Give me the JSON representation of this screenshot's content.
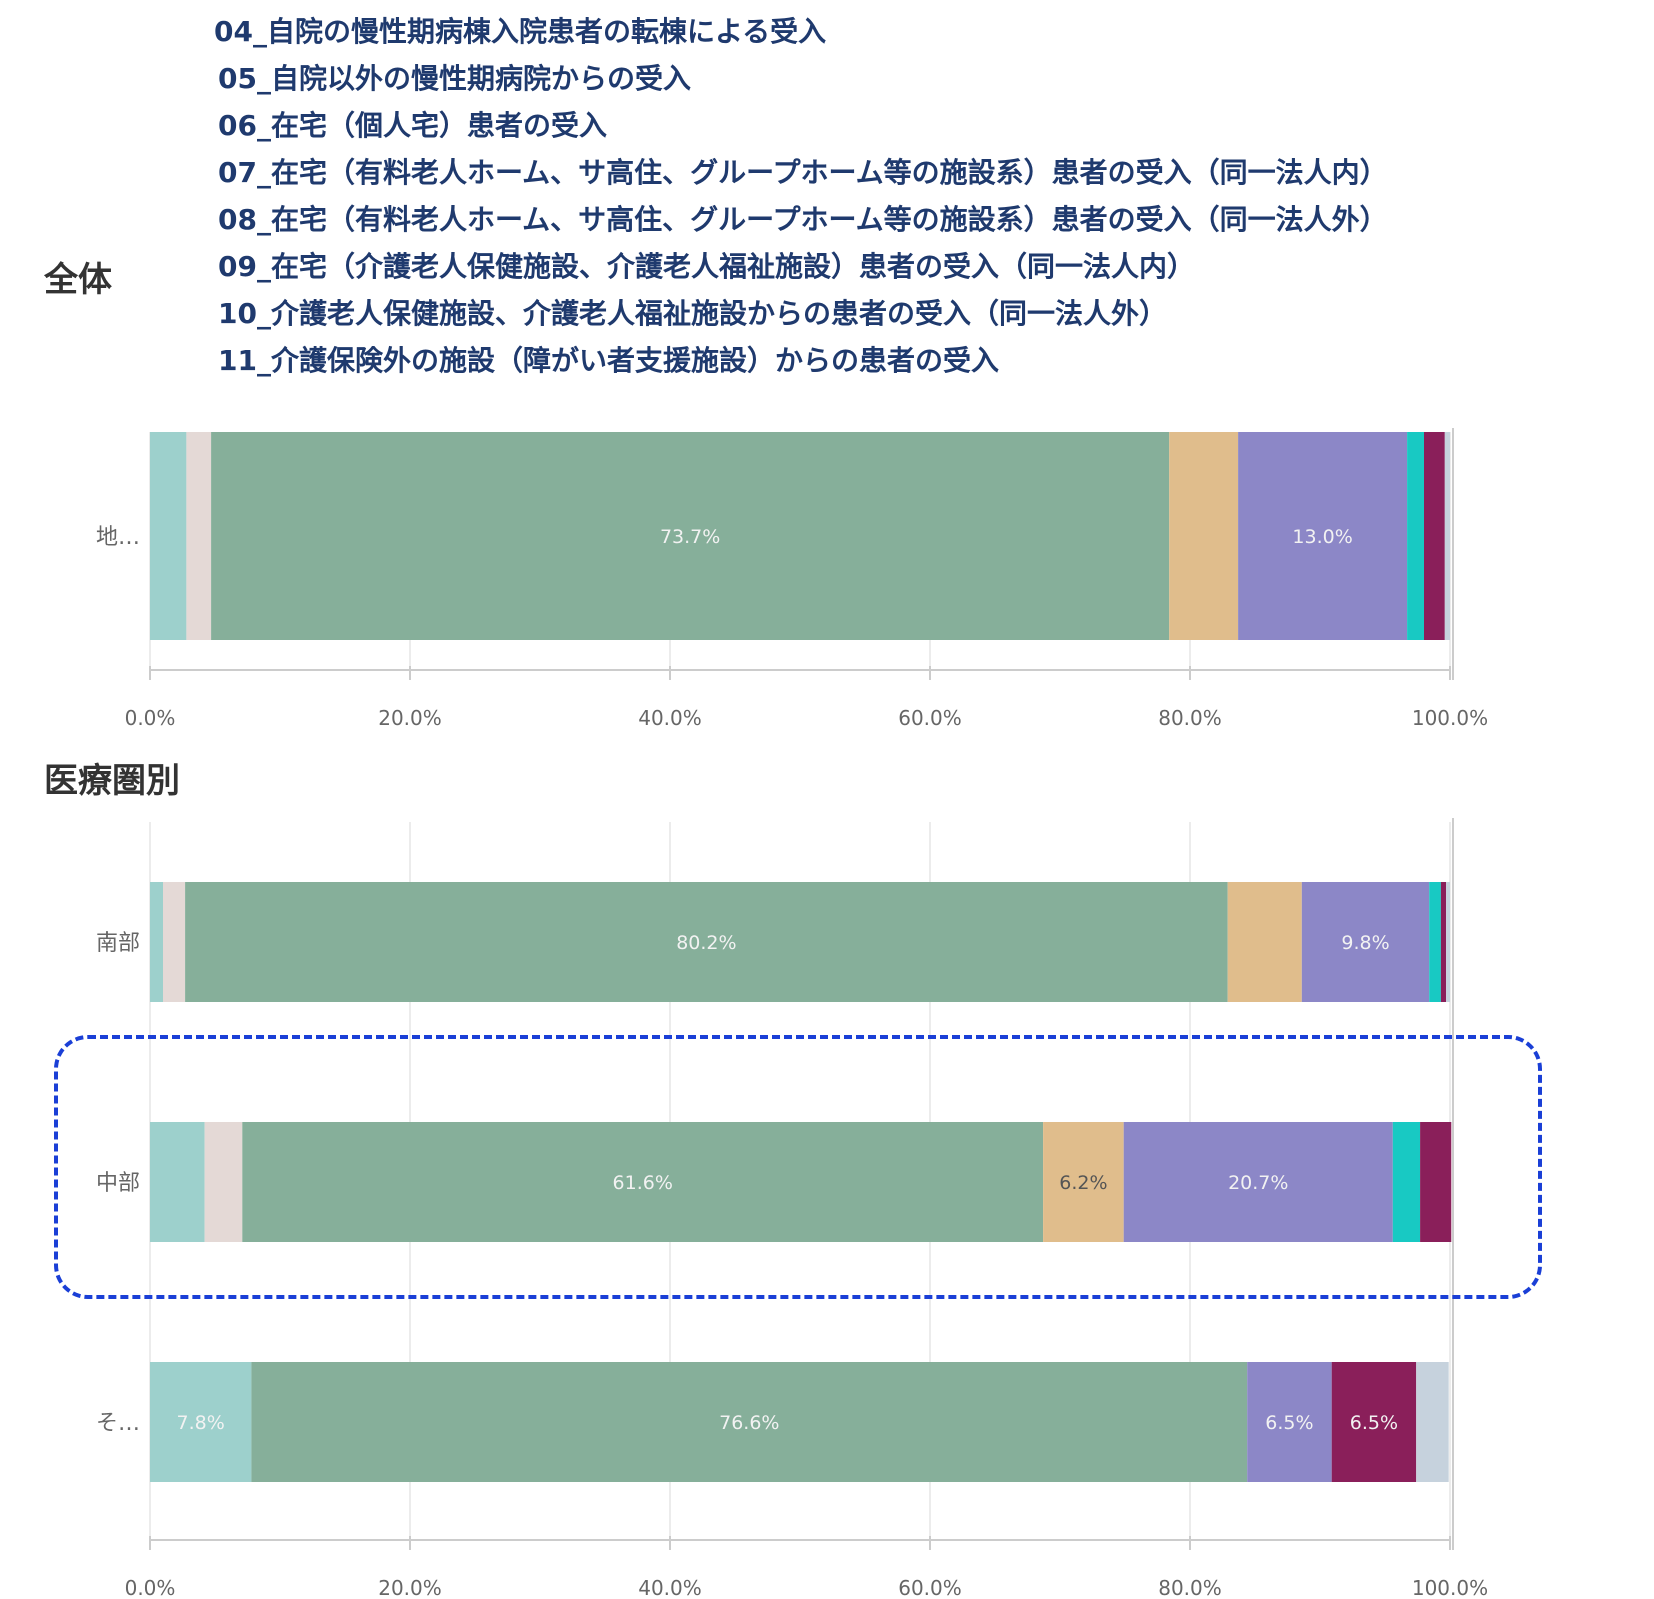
{
  "legend": [
    "04_自院の慢性期病棟入院患者の転棟による受入",
    "05_自院以外の慢性期病院からの受入",
    "06_在宅（個人宅）患者の受入",
    "07_在宅（有料老人ホーム、サ高住、グループホーム等の施設系）患者の受入（同一法人内）",
    "08_在宅（有料老人ホーム、サ高住、グループホーム等の施設系）患者の受入（同一法人外）",
    "09_在宅（介護老人保健施設、介護老人福祉施設）患者の受入（同一法人内）",
    "10_介護老人保健施設、介護老人福祉施設からの患者の受入（同一法人外）",
    "11_介護保険外の施設（障がい者支援施設）からの患者の受入"
  ],
  "sections": {
    "overall_title": "全体",
    "region_title": "医療圏別"
  },
  "chart_data": [
    {
      "type": "bar",
      "orientation": "horizontal",
      "stacked": true,
      "categories": [
        "地…"
      ],
      "xlim": [
        0,
        100
      ],
      "xticks": [
        "0.0%",
        "20.0%",
        "40.0%",
        "60.0%",
        "80.0%",
        "100.0%"
      ],
      "series": [
        {
          "color": "#9dd0cc",
          "values": [
            2.8
          ]
        },
        {
          "color": "#e4d9d6",
          "values": [
            1.9
          ]
        },
        {
          "color": "#86af9a",
          "values": [
            73.7
          ]
        },
        {
          "color": "#e0bd8c",
          "values": [
            5.3
          ]
        },
        {
          "color": "#8c87c7",
          "values": [
            13.0
          ]
        },
        {
          "color": "#18c9c3",
          "values": [
            1.3
          ]
        },
        {
          "color": "#8a1f5a",
          "values": [
            1.6
          ]
        },
        {
          "color": "#c6d2dd",
          "values": [
            0.4
          ]
        }
      ],
      "data_labels": [
        [
          "",
          "",
          "73.7%",
          "",
          "13.0%",
          "",
          "",
          ""
        ]
      ]
    },
    {
      "type": "bar",
      "orientation": "horizontal",
      "stacked": true,
      "categories": [
        "南部",
        "中部",
        "そ…"
      ],
      "xlim": [
        0,
        100
      ],
      "xticks": [
        "0.0%",
        "20.0%",
        "40.0%",
        "60.0%",
        "80.0%",
        "100.0%"
      ],
      "series": [
        {
          "color": "#9dd0cc",
          "values": [
            1.0,
            4.2,
            7.8
          ]
        },
        {
          "color": "#e4d9d6",
          "values": [
            1.7,
            2.9,
            0.0
          ]
        },
        {
          "color": "#86af9a",
          "values": [
            80.2,
            61.6,
            76.6
          ]
        },
        {
          "color": "#e0bd8c",
          "values": [
            5.7,
            6.2,
            0.0
          ]
        },
        {
          "color": "#8c87c7",
          "values": [
            9.8,
            20.7,
            6.5
          ]
        },
        {
          "color": "#18c9c3",
          "values": [
            0.9,
            2.1,
            0.0
          ]
        },
        {
          "color": "#8a1f5a",
          "values": [
            0.4,
            2.4,
            6.5
          ]
        },
        {
          "color": "#c6d2dd",
          "values": [
            0.3,
            0.0,
            2.5
          ]
        }
      ],
      "data_labels": [
        [
          "",
          "",
          "80.2%",
          "",
          "9.8%",
          "",
          "",
          ""
        ],
        [
          "",
          "",
          "61.6%",
          "6.2%",
          "20.7%",
          "",
          "",
          ""
        ],
        [
          "7.8%",
          "",
          "76.6%",
          "",
          "6.5%",
          "",
          "6.5%",
          ""
        ]
      ]
    }
  ]
}
